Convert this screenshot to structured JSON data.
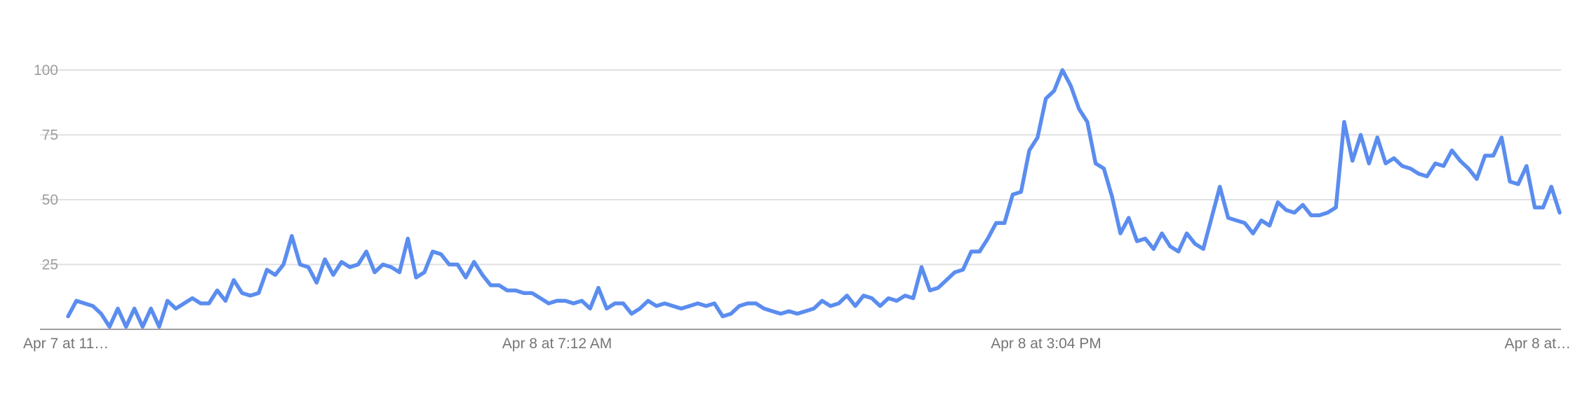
{
  "chart_data": {
    "type": "line",
    "title": "",
    "xlabel": "",
    "ylabel": "",
    "ylim": [
      0,
      100
    ],
    "yticks": [
      25,
      50,
      75,
      100
    ],
    "grid": true,
    "x_tick_labels": [
      "Apr 7 at 11…",
      "Apr 8 at 7:12 AM",
      "Apr 8 at 3:04 PM",
      "Apr 8 at…"
    ],
    "x_tick_positions": [
      0,
      60,
      120,
      180
    ],
    "series": [
      {
        "color": "#5b8def",
        "values": [
          5,
          11,
          10,
          9,
          6,
          1,
          8,
          1,
          8,
          1,
          8,
          1,
          11,
          8,
          10,
          12,
          10,
          10,
          15,
          11,
          19,
          14,
          13,
          14,
          23,
          21,
          25,
          36,
          25,
          24,
          18,
          27,
          21,
          26,
          24,
          25,
          30,
          22,
          25,
          24,
          22,
          35,
          20,
          22,
          30,
          29,
          25,
          25,
          20,
          26,
          21,
          17,
          17,
          15,
          15,
          14,
          14,
          12,
          10,
          11,
          11,
          10,
          11,
          8,
          16,
          8,
          10,
          10,
          6,
          8,
          11,
          9,
          10,
          9,
          8,
          9,
          10,
          9,
          10,
          5,
          6,
          9,
          10,
          10,
          8,
          7,
          6,
          7,
          6,
          7,
          8,
          11,
          9,
          10,
          13,
          9,
          13,
          12,
          9,
          12,
          11,
          13,
          12,
          24,
          15,
          16,
          19,
          22,
          23,
          30,
          30,
          35,
          41,
          41,
          52,
          53,
          69,
          74,
          89,
          92,
          100,
          94,
          85,
          80,
          64,
          62,
          51,
          37,
          43,
          34,
          35,
          31,
          37,
          32,
          30,
          37,
          33,
          31,
          43,
          55,
          43,
          42,
          41,
          37,
          42,
          40,
          49,
          46,
          45,
          48,
          44,
          44,
          45,
          47,
          80,
          65,
          75,
          64,
          74,
          64,
          66,
          63,
          62,
          60,
          59,
          64,
          63,
          69,
          65,
          62,
          58,
          67,
          67,
          74,
          57,
          56,
          63,
          47,
          47,
          55,
          45
        ]
      }
    ]
  }
}
